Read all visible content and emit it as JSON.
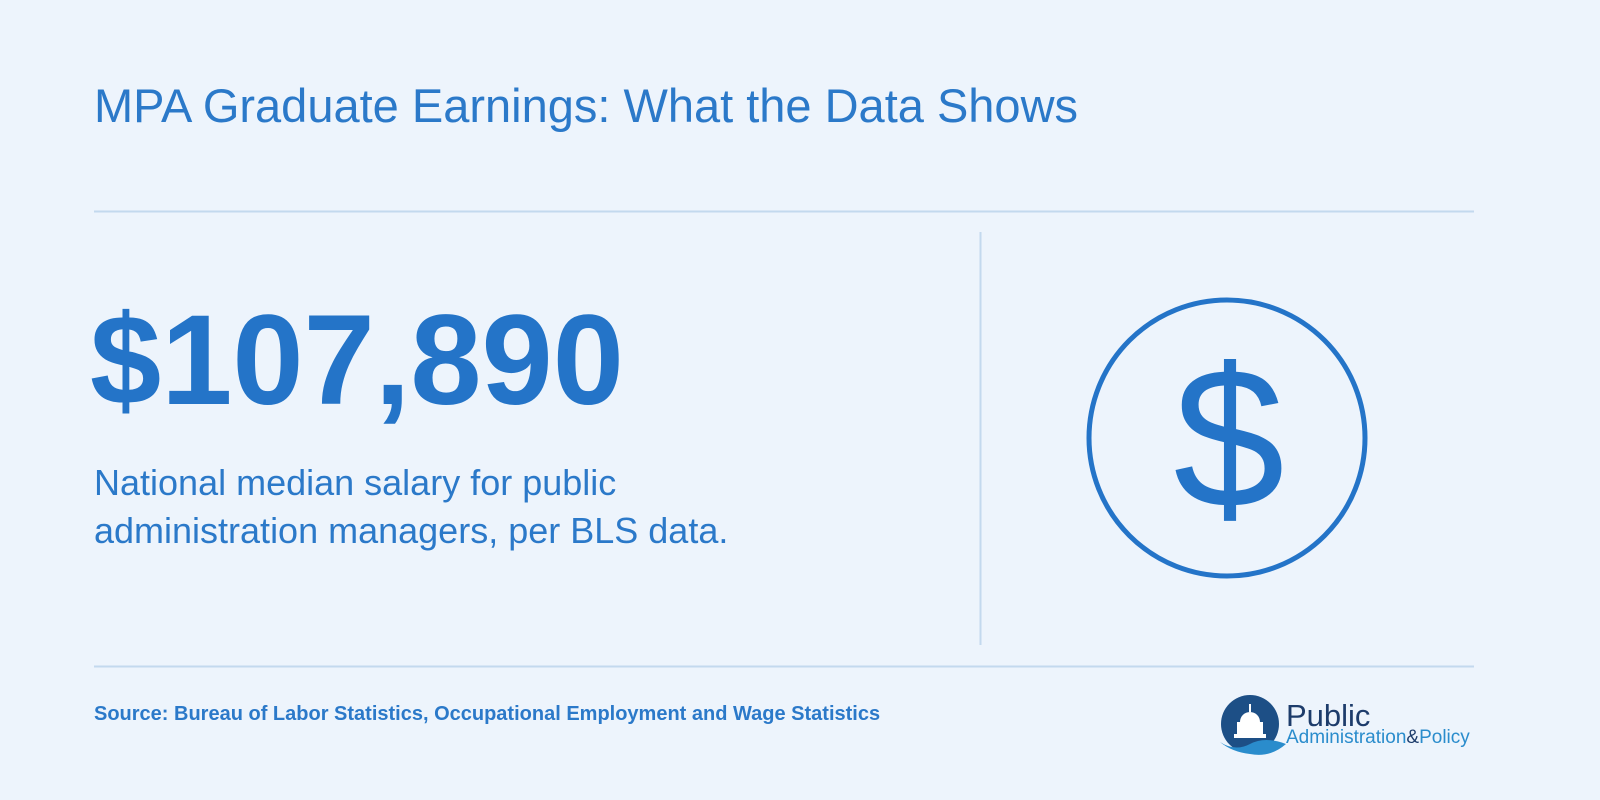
{
  "header": {
    "title": "MPA Graduate Earnings: What the Data Shows"
  },
  "stat": {
    "value": "$107,890",
    "description": "National median salary for public administration managers, per BLS data.",
    "icon": "$"
  },
  "footer": {
    "source": "Source: Bureau of Labor Statistics, Occupational Employment and Wage Statistics",
    "logo": {
      "line1": "Public",
      "line2a": "Administration",
      "amp": "&",
      "line2b": "Policy"
    }
  }
}
